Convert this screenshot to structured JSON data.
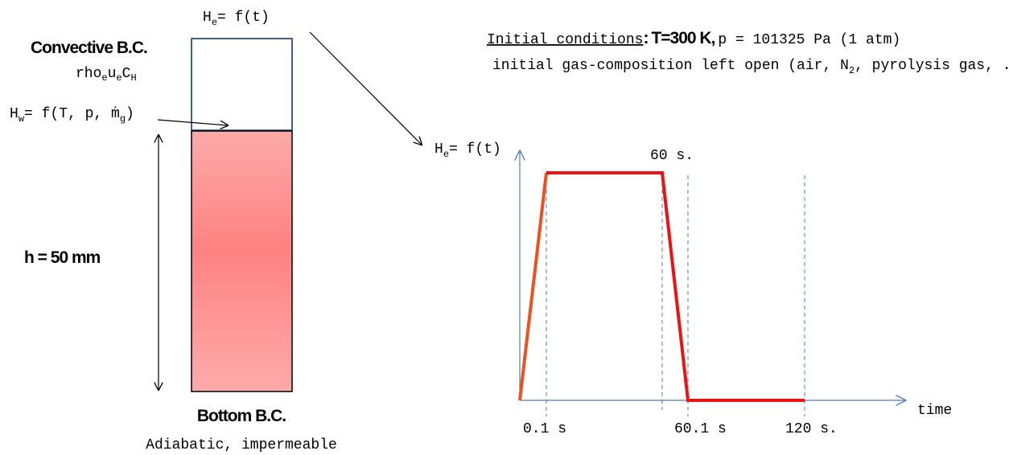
{
  "top_label": [
    {
      "text": "H"
    },
    {
      "sub": "e"
    },
    {
      "text": "= f(t)"
    }
  ],
  "convective": {
    "title": "Convective B.C.",
    "formula": [
      {
        "text": "rho"
      },
      {
        "sub": "e"
      },
      {
        "text": "u"
      },
      {
        "sub": "e"
      },
      {
        "text": "C"
      },
      {
        "sub": "H"
      }
    ]
  },
  "wall": [
    {
      "text": "H"
    },
    {
      "sub": "w"
    },
    {
      "text": "= f(T, p, ṁ"
    },
    {
      "sub": "g"
    },
    {
      "text": ")"
    }
  ],
  "height": "h = 50 mm",
  "bottom": {
    "title": "Bottom B.C.",
    "text": "Adiabatic, impermeable"
  },
  "initial": {
    "label": "Initial conditions",
    "colon": ":",
    "temperature": "T=300 K,",
    "pressure": "p = 101325 Pa (1 atm)",
    "composition": [
      {
        "text": "initial gas-composition left open (air, N"
      },
      {
        "sub": "2"
      },
      {
        "text": ", pyrolysis gas, ...)"
      }
    ]
  },
  "graph": {
    "y_label": [
      {
        "text": "H"
      },
      {
        "sub": "e"
      },
      {
        "text": "= f(t)"
      }
    ],
    "peak_label": "60 s.",
    "x_label": "time",
    "ticks": [
      "0.1 s",
      "60.1 s",
      "120 s."
    ]
  }
}
